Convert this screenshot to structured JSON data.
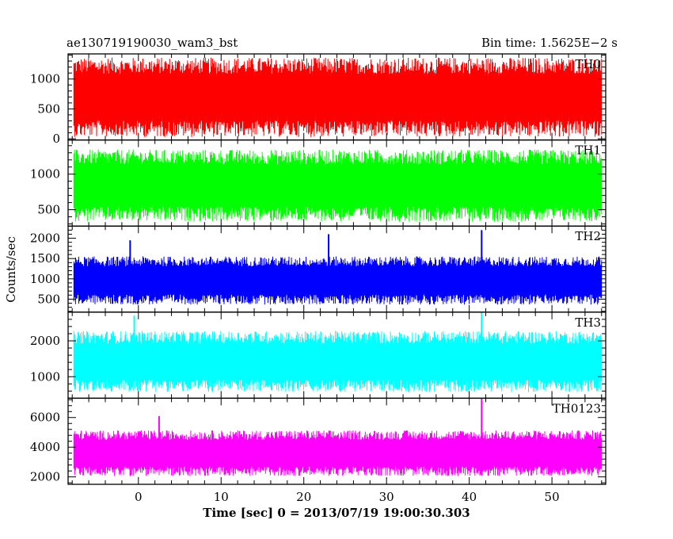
{
  "header": {
    "title_left": "ae130719190030_wam3_bst",
    "title_right": "Bin time: 1.5625E−2 s"
  },
  "chart_data": {
    "type": "line",
    "xlabel": "Time [sec] 0 = 2013/07/19 19:00:30.303",
    "ylabel": "Counts/sec",
    "xlim": [
      -8.5,
      56.5
    ],
    "data_xrange": [
      -7.8,
      56.0
    ],
    "xticks": [
      0,
      10,
      20,
      30,
      40,
      50
    ],
    "panels": [
      {
        "name": "TH0",
        "color": "#ff0000",
        "ylim": [
          -20,
          1420
        ],
        "yticks": [
          0,
          500,
          1000
        ],
        "band_low": 90,
        "band_high": 1300,
        "spikes": []
      },
      {
        "name": "TH1",
        "color": "#00ff00",
        "ylim": [
          270,
          1480
        ],
        "yticks": [
          500,
          1000
        ],
        "band_low": 380,
        "band_high": 1300,
        "spikes": []
      },
      {
        "name": "TH2",
        "color": "#0000ff",
        "ylim": [
          180,
          2300
        ],
        "yticks": [
          500,
          1000,
          1500,
          2000
        ],
        "band_low": 420,
        "band_high": 1500,
        "spikes": [
          [
            -1,
            1950
          ],
          [
            23,
            2100
          ],
          [
            41.5,
            2200
          ]
        ]
      },
      {
        "name": "TH3",
        "color": "#00ffff",
        "ylim": [
          400,
          2800
        ],
        "yticks": [
          1000,
          2000
        ],
        "band_low": 650,
        "band_high": 2200,
        "spikes": [
          [
            -0.5,
            2700
          ],
          [
            41.5,
            2800
          ]
        ]
      },
      {
        "name": "TH0123",
        "color": "#ff00ff",
        "ylim": [
          1500,
          7300
        ],
        "yticks": [
          2000,
          4000,
          6000
        ],
        "band_low": 2200,
        "band_high": 5000,
        "spikes": [
          [
            2.5,
            6100
          ],
          [
            41.5,
            7300
          ]
        ]
      }
    ]
  }
}
